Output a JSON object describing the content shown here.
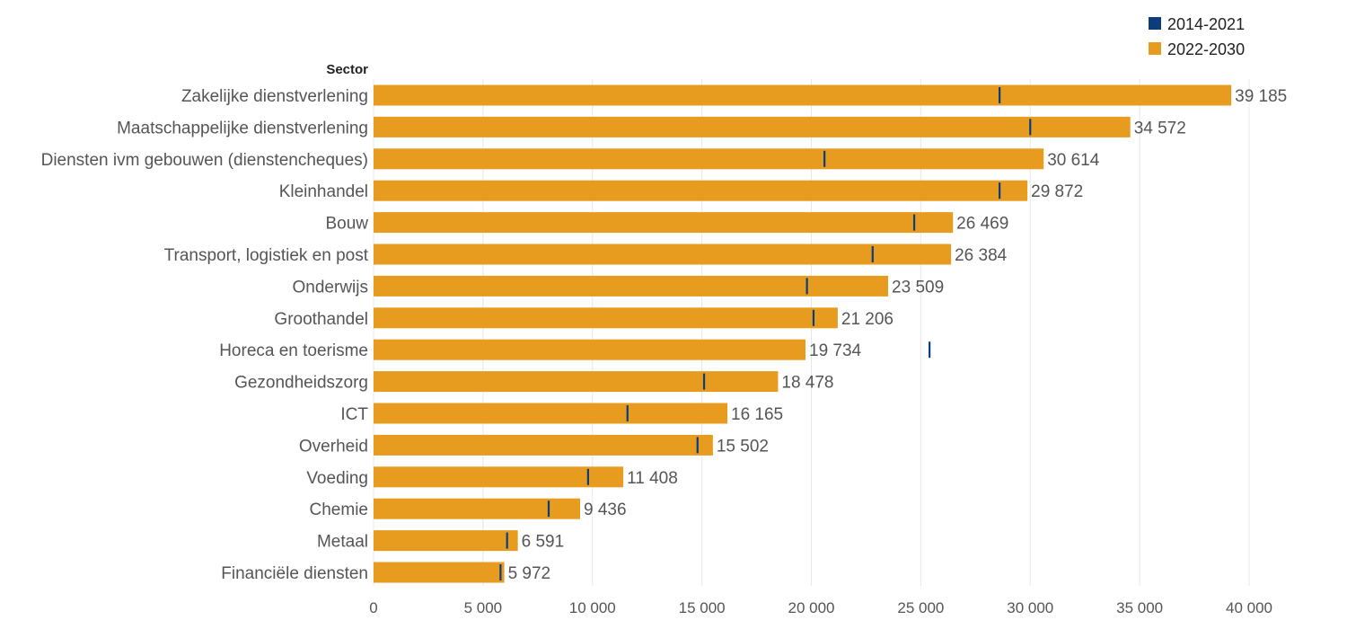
{
  "chart_data": {
    "type": "bar",
    "orientation": "horizontal",
    "y_axis_title": "Sector",
    "categories": [
      "Zakelijke dienstverlening",
      "Maatschappelijke dienstverlening",
      "Diensten ivm gebouwen (dienstencheques)",
      "Kleinhandel",
      "Bouw",
      "Transport, logistiek en post",
      "Onderwijs",
      "Groothandel",
      "Horeca en toerisme",
      "Gezondheidszorg",
      "ICT",
      "Overheid",
      "Voeding",
      "Chemie",
      "Metaal",
      "Financiële diensten"
    ],
    "series": [
      {
        "name": "2022-2030",
        "kind": "bar",
        "color": "#E89C1F",
        "values": [
          39185,
          34572,
          30614,
          29872,
          26469,
          26384,
          23509,
          21206,
          19734,
          18478,
          16165,
          15502,
          11408,
          9436,
          6591,
          5972
        ],
        "value_labels": [
          "39 185",
          "34 572",
          "30 614",
          "29 872",
          "26 469",
          "26 384",
          "23 509",
          "21 206",
          "19 734",
          "18 478",
          "16 165",
          "15 502",
          "11 408",
          "9 436",
          "6 591",
          "5 972"
        ]
      },
      {
        "name": "2014-2021",
        "kind": "marker",
        "color": "#0B3D7A",
        "values": [
          28600,
          30000,
          20600,
          28600,
          24700,
          22800,
          19800,
          20100,
          25400,
          15100,
          11600,
          14800,
          9800,
          8000,
          6100,
          5800
        ]
      }
    ],
    "xlim": [
      0,
      40000
    ],
    "x_ticks": [
      0,
      5000,
      10000,
      15000,
      20000,
      25000,
      30000,
      35000,
      40000
    ],
    "x_tick_labels": [
      "0",
      "5 000",
      "10 000",
      "15 000",
      "20 000",
      "25 000",
      "30 000",
      "35 000",
      "40 000"
    ],
    "grid": "vertical",
    "legend": {
      "position": "top-right",
      "entries": [
        {
          "label": "2014-2021",
          "color": "#0B3D7A"
        },
        {
          "label": "2022-2030",
          "color": "#E89C1F"
        }
      ]
    }
  }
}
